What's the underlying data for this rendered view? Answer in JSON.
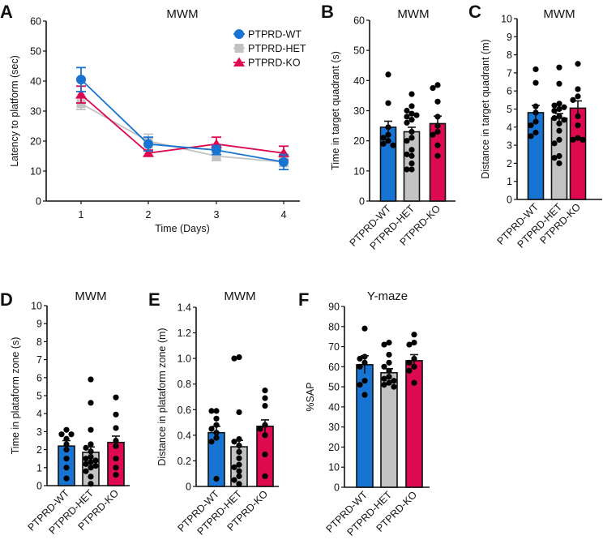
{
  "colors": {
    "WT": "#1874d2",
    "HET": "#c2c2c2",
    "KO": "#de0a50"
  },
  "chart_data": [
    {
      "id": "A",
      "type": "line",
      "title": "MWM",
      "xlabel": "Time (Days)",
      "ylabel": "Latency to platform (sec)",
      "x": [
        1,
        2,
        3,
        4
      ],
      "ylim": [
        0,
        60
      ],
      "yticks": [
        0,
        10,
        20,
        30,
        40,
        50,
        60
      ],
      "xticks": [
        "1",
        "2",
        "3",
        "4"
      ],
      "legend": "top-right",
      "series": [
        {
          "name": "PTPRD-WT",
          "key": "WT",
          "marker": "circle",
          "values": [
            40.5,
            19,
            17,
            13
          ],
          "sem": [
            4,
            2.3,
            1.5,
            2.5
          ]
        },
        {
          "name": "PTPRD-HET",
          "key": "HET",
          "marker": "square",
          "values": [
            32.5,
            20,
            15,
            13
          ],
          "sem": [
            2,
            2.3,
            1.5,
            1.5
          ]
        },
        {
          "name": "PTPRD-KO",
          "key": "KO",
          "marker": "triangle",
          "values": [
            35.5,
            16,
            19,
            16
          ],
          "sem": [
            2.8,
            1,
            2.3,
            2.3
          ]
        }
      ]
    },
    {
      "id": "B",
      "type": "bar",
      "title": "MWM",
      "ylabel": "Time in target quadrant (s)",
      "ylim": [
        0,
        60
      ],
      "yticks": [
        0,
        10,
        20,
        30,
        40,
        50,
        60
      ],
      "categories": [
        "PTPRD-WT",
        "PTPRD-HET",
        "PTPRD-KO"
      ],
      "values": [
        24.5,
        23,
        25.7
      ],
      "sem": [
        2,
        1.5,
        2.5
      ],
      "points": [
        [
          42,
          32.5,
          24.5,
          22,
          20,
          18.5,
          21,
          19
        ],
        [
          35.5,
          31.5,
          30,
          29,
          28,
          28.5,
          27,
          26,
          23,
          21,
          20,
          17,
          15.5,
          12.5,
          10.5,
          10.5,
          15
        ],
        [
          37.5,
          38.5,
          33,
          28,
          23,
          22,
          18.5,
          15,
          25
        ]
      ]
    },
    {
      "id": "C",
      "type": "bar",
      "title": "MWM",
      "ylabel": "Distance in target quadrant (m)",
      "ylim": [
        0,
        10
      ],
      "yticks": [
        0,
        1,
        2,
        3,
        4,
        5,
        6,
        7,
        8,
        9,
        10
      ],
      "categories": [
        "PTPRD-WT",
        "PTPRD-HET",
        "PTPRD-KO"
      ],
      "values": [
        4.8,
        4.5,
        5.05
      ],
      "sem": [
        0.4,
        0.25,
        0.4
      ],
      "points": [
        [
          7.2,
          6.45,
          5.15,
          4.3,
          4.1,
          3.7,
          3.5,
          4.8
        ],
        [
          7.3,
          6.4,
          5.3,
          5.2,
          5.1,
          5.0,
          4.9,
          4.6,
          4.4,
          4.2,
          3.8,
          3.3,
          3.1,
          2.4,
          2.3,
          2.0,
          4.5
        ],
        [
          7.5,
          6.1,
          5.7,
          5.5,
          4.6,
          4.1,
          3.4,
          3.3,
          3.3
        ]
      ]
    },
    {
      "id": "D",
      "type": "bar",
      "title": "MWM",
      "ylabel": "Time in plataform zone (s)",
      "ylim": [
        0,
        10
      ],
      "yticks": [
        0,
        1,
        2,
        3,
        4,
        5,
        6,
        7,
        8,
        9,
        10
      ],
      "categories": [
        "PTPRD-WT",
        "PTPRD-HET",
        "PTPRD-KO"
      ],
      "values": [
        2.2,
        1.85,
        2.4
      ],
      "sem": [
        0.3,
        0.3,
        0.35
      ],
      "points": [
        [
          3.1,
          2.85,
          2.85,
          2.6,
          2.3,
          2.0,
          1.5,
          1.0,
          0.4
        ],
        [
          5.9,
          4.6,
          3.1,
          2.3,
          2.1,
          1.9,
          1.6,
          1.4,
          1.3,
          1.2,
          1.1,
          1.0,
          0.8,
          0.5,
          0.1,
          1.5
        ],
        [
          4.9,
          3.95,
          3.2,
          2.5,
          2.2,
          1.5,
          1.0,
          0.6
        ]
      ]
    },
    {
      "id": "E",
      "type": "bar",
      "title": "MWM",
      "ylabel": "Distance in plataform zone (m)",
      "ylim": [
        0,
        1.4
      ],
      "yticks": [
        0,
        0.2,
        0.4,
        0.6,
        0.8,
        1.0,
        1.2,
        1.4
      ],
      "ytick_labels": [
        "0",
        "0.2",
        "0.4",
        "0.6",
        "0.8",
        "1.0",
        "1.2",
        "1.4"
      ],
      "categories": [
        "PTPRD-WT",
        "PTPRD-HET",
        "PTPRD-KO"
      ],
      "values": [
        0.42,
        0.31,
        0.47
      ],
      "sem": [
        0.05,
        0.05,
        0.05
      ],
      "points": [
        [
          0.59,
          0.59,
          0.53,
          0.48,
          0.45,
          0.42,
          0.38,
          0.35,
          0.06
        ],
        [
          1.01,
          1.0,
          0.58,
          0.37,
          0.35,
          0.32,
          0.27,
          0.22,
          0.17,
          0.15,
          0.12,
          0.08,
          0.02,
          0.05
        ],
        [
          0.75,
          0.69,
          0.63,
          0.48,
          0.45,
          0.4,
          0.25,
          0.08
        ]
      ]
    },
    {
      "id": "F",
      "type": "bar",
      "title": "Y-maze",
      "ylabel": "%SAP",
      "ylim": [
        0,
        90
      ],
      "yticks": [
        0,
        10,
        20,
        30,
        40,
        50,
        60,
        70,
        80,
        90
      ],
      "categories": [
        "PTPRD-WT",
        "PTPRD-HET",
        "PTPRD-KO"
      ],
      "values": [
        61,
        57,
        63
      ],
      "sem": [
        4.5,
        2,
        3
      ],
      "points": [
        [
          79,
          65,
          64,
          62,
          53,
          51,
          46,
          60
        ],
        [
          72,
          71,
          66,
          62,
          60,
          58,
          55,
          53,
          51,
          50,
          52,
          54
        ],
        [
          76,
          72,
          71,
          64,
          60,
          58,
          52,
          62
        ]
      ]
    }
  ]
}
